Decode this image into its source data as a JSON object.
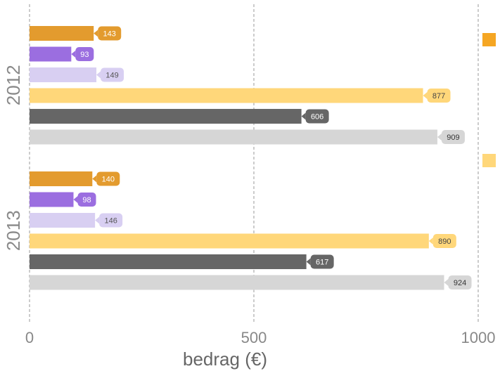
{
  "chart_data": {
    "type": "bar",
    "orientation": "horizontal",
    "xlabel": "bedrag (€)",
    "xlim": [
      0,
      1000
    ],
    "xticks": [
      "0",
      "500",
      "1000"
    ],
    "grid": true,
    "legend": "right",
    "categories": [
      "2012",
      "2013"
    ],
    "series": [
      {
        "color": "#e39b2e",
        "values": [
          143,
          140
        ]
      },
      {
        "color": "#9b6ee0",
        "values": [
          93,
          98
        ]
      },
      {
        "color": "#d8cff2",
        "values": [
          149,
          146
        ]
      },
      {
        "color": "#ffd77a",
        "values": [
          877,
          890
        ]
      },
      {
        "color": "#666666",
        "values": [
          606,
          617
        ]
      },
      {
        "color": "#d6d6d6",
        "values": [
          909,
          924
        ]
      }
    ],
    "legend_swatches": [
      "#f5a623",
      "#ffd77a"
    ]
  }
}
